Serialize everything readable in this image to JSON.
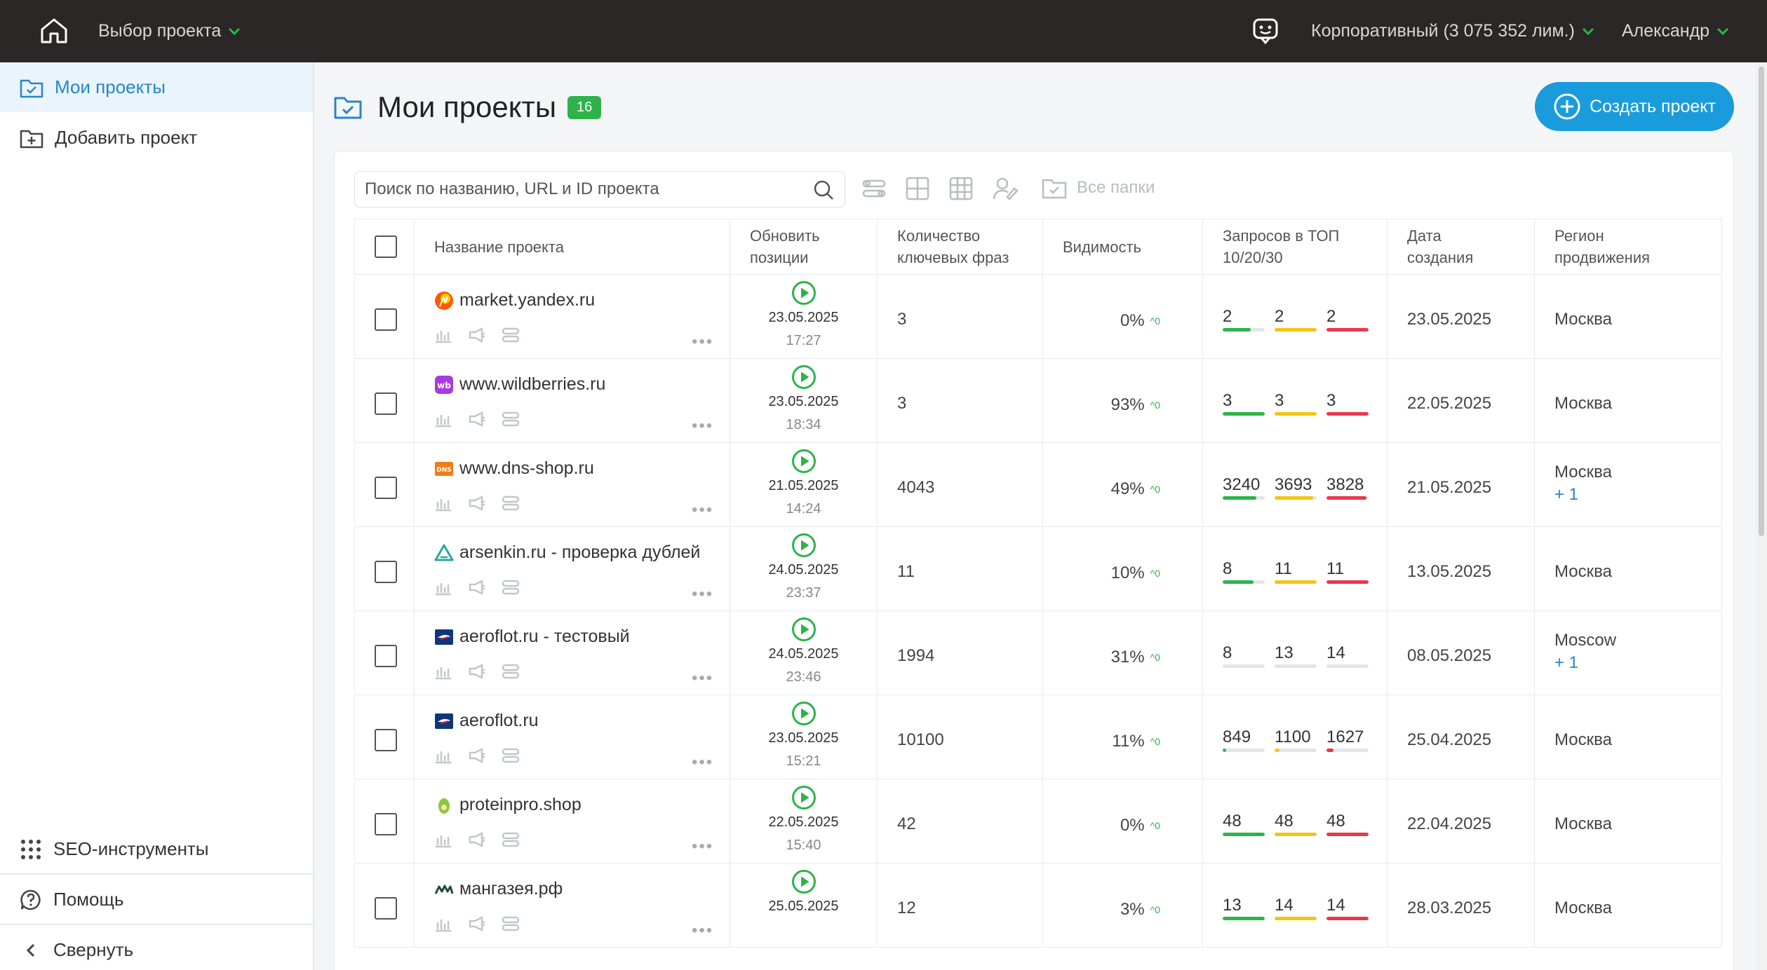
{
  "topbar": {
    "project_select": "Выбор проекта",
    "plan": "Корпоративный (3 075 352 лим.)",
    "user": "Александр"
  },
  "sidebar": {
    "items": [
      {
        "label": "Мои проекты",
        "icon": "folder-check-icon",
        "active": true
      },
      {
        "label": "Добавить проект",
        "icon": "folder-plus-icon",
        "active": false
      }
    ],
    "bottom": [
      {
        "label": "SEO-инструменты",
        "icon": "grid-dots-icon"
      },
      {
        "label": "Помощь",
        "icon": "help-chat-icon"
      },
      {
        "label": "Свернуть",
        "icon": "chevron-left-icon"
      }
    ]
  },
  "main": {
    "title": "Мои проекты",
    "count": "16",
    "create_button": "Создать проект",
    "search_placeholder": "Поиск по названию, URL и ID проекта",
    "folders_label": "Все папки"
  },
  "table": {
    "headers": {
      "name": "Название проекта",
      "update": "Обновить позиции",
      "keywords": "Количество ключевых фраз",
      "visibility": "Видимость",
      "top": "Запросов в ТОП 10/20/30",
      "created": "Дата создания",
      "region": "Регион продвижения"
    },
    "rows": [
      {
        "name": "market.yandex.ru",
        "favicon": "yandex-market",
        "date": "23.05.2025",
        "time": "17:27",
        "keywords": "3",
        "visibility": "0%",
        "delta": "^0",
        "top": [
          "2",
          "2",
          "2"
        ],
        "fills": [
          0.66,
          1.0,
          1.0
        ],
        "created": "23.05.2025",
        "region": "Москва",
        "extra": ""
      },
      {
        "name": "www.wildberries.ru",
        "favicon": "wildberries",
        "date": "23.05.2025",
        "time": "18:34",
        "keywords": "3",
        "visibility": "93%",
        "delta": "^0",
        "top": [
          "3",
          "3",
          "3"
        ],
        "fills": [
          1.0,
          1.0,
          1.0
        ],
        "created": "22.05.2025",
        "region": "Москва",
        "extra": ""
      },
      {
        "name": "www.dns-shop.ru",
        "favicon": "dns",
        "date": "21.05.2025",
        "time": "14:24",
        "keywords": "4043",
        "visibility": "49%",
        "delta": "^0",
        "top": [
          "3240",
          "3693",
          "3828"
        ],
        "fills": [
          0.8,
          0.91,
          0.95
        ],
        "created": "21.05.2025",
        "region": "Москва",
        "extra": "+ 1"
      },
      {
        "name": "arsenkin.ru - проверка дублей",
        "favicon": "arsenkin",
        "date": "24.05.2025",
        "time": "23:37",
        "keywords": "11",
        "visibility": "10%",
        "delta": "^0",
        "top": [
          "8",
          "11",
          "11"
        ],
        "fills": [
          0.73,
          1.0,
          1.0
        ],
        "created": "13.05.2025",
        "region": "Москва",
        "extra": ""
      },
      {
        "name": "aeroflot.ru - тестовый",
        "favicon": "aeroflot",
        "date": "24.05.2025",
        "time": "23:46",
        "keywords": "1994",
        "visibility": "31%",
        "delta": "^0",
        "top": [
          "8",
          "13",
          "14"
        ],
        "fills": [
          0.0,
          0.0,
          0.0
        ],
        "created": "08.05.2025",
        "region": "Moscow",
        "extra": "+ 1"
      },
      {
        "name": "aeroflot.ru",
        "favicon": "aeroflot",
        "date": "23.05.2025",
        "time": "15:21",
        "keywords": "10100",
        "visibility": "11%",
        "delta": "^0",
        "top": [
          "849",
          "1100",
          "1627"
        ],
        "fills": [
          0.08,
          0.11,
          0.16
        ],
        "created": "25.04.2025",
        "region": "Москва",
        "extra": ""
      },
      {
        "name": "proteinpro.shop",
        "favicon": "proteinpro",
        "date": "22.05.2025",
        "time": "15:40",
        "keywords": "42",
        "visibility": "0%",
        "delta": "^0",
        "top": [
          "48",
          "48",
          "48"
        ],
        "fills": [
          1.0,
          1.0,
          1.0
        ],
        "created": "22.04.2025",
        "region": "Москва",
        "extra": ""
      },
      {
        "name": "мангазея.рф",
        "favicon": "mangazeya",
        "date": "25.05.2025",
        "time": "",
        "keywords": "12",
        "visibility": "3%",
        "delta": "^0",
        "top": [
          "13",
          "14",
          "14"
        ],
        "fills": [
          1.0,
          1.0,
          1.0
        ],
        "created": "28.03.2025",
        "region": "Москва",
        "extra": ""
      }
    ]
  },
  "colors": {
    "green": "#2db34a",
    "yellow": "#f4c414",
    "red": "#e8384f",
    "accent": "#1a9cdc"
  }
}
